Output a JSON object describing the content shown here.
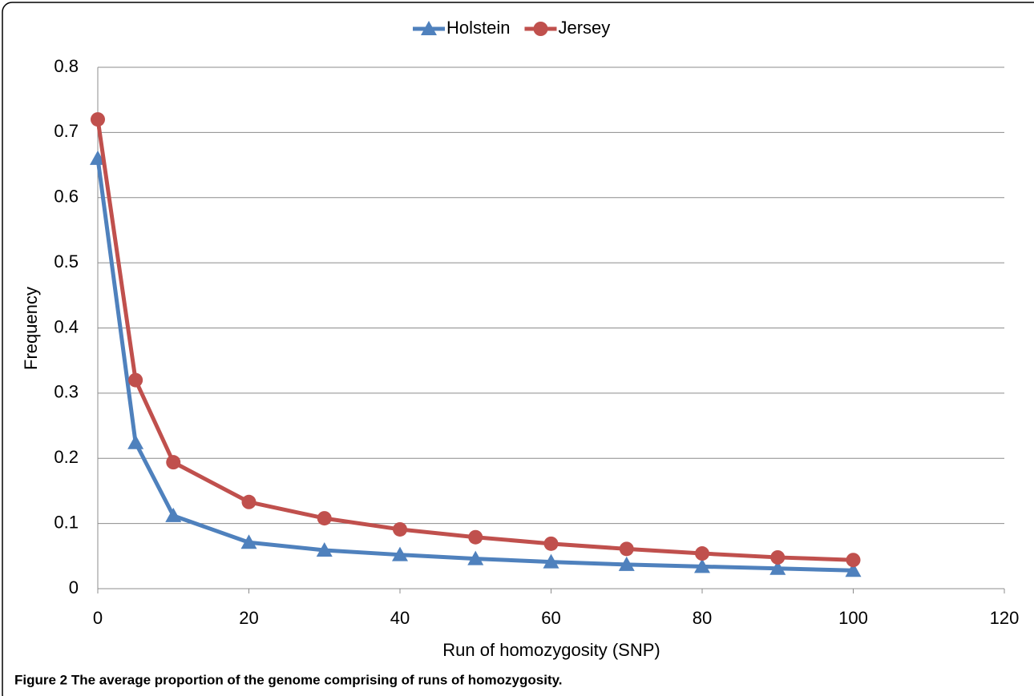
{
  "chart_data": {
    "type": "line",
    "x_label": "Run of homozygosity (SNP)",
    "y_label": "Frequency",
    "caption": "Figure 2 The average proportion of the genome comprising of runs of homozygosity.",
    "x": [
      0,
      5,
      10,
      20,
      30,
      40,
      50,
      60,
      70,
      80,
      90,
      100
    ],
    "series": [
      {
        "name": "Holstein",
        "color": "#4f81bd",
        "marker": "triangle",
        "values": [
          0.66,
          0.224,
          0.112,
          0.071,
          0.059,
          0.052,
          0.046,
          0.041,
          0.037,
          0.034,
          0.031,
          0.028
        ]
      },
      {
        "name": "Jersey",
        "color": "#c0504d",
        "marker": "circle",
        "values": [
          0.72,
          0.32,
          0.194,
          0.133,
          0.108,
          0.091,
          0.079,
          0.069,
          0.061,
          0.054,
          0.048,
          0.044
        ]
      }
    ],
    "xlim": [
      0,
      120
    ],
    "xticks": [
      0,
      20,
      40,
      60,
      80,
      100,
      120
    ],
    "ylim": [
      0,
      0.8
    ],
    "yticks": [
      0,
      0.1,
      0.2,
      0.3,
      0.4,
      0.5,
      0.6,
      0.7,
      0.8
    ],
    "grid": true,
    "legend": "top"
  }
}
